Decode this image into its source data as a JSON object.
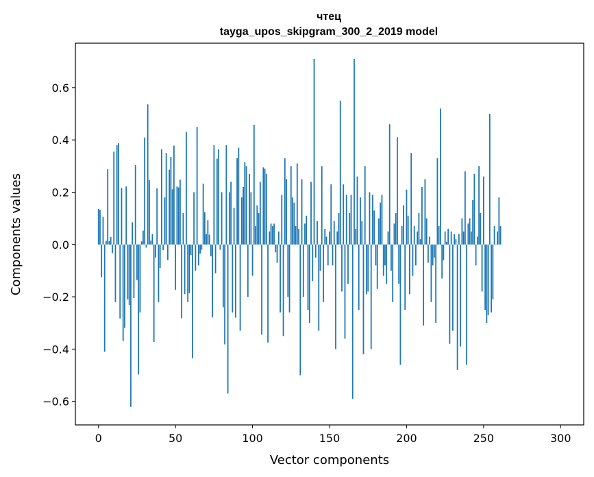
{
  "chart_data": {
    "type": "bar",
    "title": "чтец",
    "subtitle": "tayga_upos_skipgram_300_2_2019 model",
    "xlabel": "Vector components",
    "ylabel": "Components values",
    "xlim": [
      -15,
      315
    ],
    "ylim": [
      -0.69,
      0.77
    ],
    "x_ticks": [
      0,
      50,
      100,
      150,
      200,
      250,
      300
    ],
    "x_tick_labels": [
      "0",
      "50",
      "100",
      "150",
      "200",
      "250",
      "300"
    ],
    "y_ticks": [
      -0.6,
      -0.4,
      -0.2,
      0.0,
      0.2,
      0.4,
      0.6
    ],
    "y_tick_labels": [
      "−0.6",
      "−0.4",
      "−0.2",
      "0.0",
      "0.2",
      "0.4",
      "0.6"
    ],
    "bar_color": "#1f77b4",
    "series": [
      {
        "name": "components",
        "values": [
          0.136,
          0.133,
          -0.125,
          0.106,
          -0.41,
          0.014,
          0.288,
          0.013,
          0.029,
          -0.033,
          0.355,
          -0.22,
          0.38,
          0.388,
          -0.283,
          0.216,
          -0.369,
          -0.319,
          0.222,
          -0.21,
          -0.232,
          -0.621,
          0.085,
          -0.205,
          0.304,
          -0.136,
          -0.497,
          -0.26,
          0.012,
          0.053,
          0.409,
          -0.012,
          0.536,
          0.246,
          0.015,
          0.04,
          -0.373,
          -0.05,
          0.215,
          -0.22,
          -0.09,
          0.364,
          -0.022,
          0.18,
          0.35,
          -0.059,
          0.286,
          0.335,
          0.211,
          0.378,
          -0.173,
          0.222,
          0.218,
          0.248,
          -0.282,
          0.12,
          -0.19,
          0.431,
          -0.22,
          -0.186,
          -0.04,
          -0.435,
          0.2,
          -0.1,
          0.45,
          -0.08,
          -0.035,
          -0.02,
          0.233,
          0.124,
          0.04,
          0.093,
          0.038,
          -0.045,
          -0.279,
          0.38,
          -0.11,
          0.328,
          0.364,
          -0.02,
          0.2,
          -0.24,
          -0.382,
          0.38,
          -0.57,
          0.2,
          0.24,
          -0.26,
          0.14,
          -0.28,
          0.33,
          0.37,
          -0.33,
          0.18,
          0.22,
          0.315,
          0.3,
          -0.2,
          0.27,
          0.2,
          -0.12,
          0.458,
          0.07,
          0.15,
          0.12,
          0.24,
          -0.345,
          0.295,
          0.29,
          0.27,
          -0.375,
          0.05,
          0.08,
          0.07,
          0.08,
          -0.03,
          -0.07,
          0.05,
          -0.26,
          0.19,
          -0.35,
          0.33,
          0.25,
          -0.2,
          -0.26,
          0.3,
          0.18,
          0.16,
          0.07,
          0.31,
          0.06,
          -0.5,
          0.25,
          -0.2,
          0.08,
          0.11,
          -0.25,
          -0.3,
          0.24,
          -0.14,
          0.71,
          -0.05,
          0.09,
          -0.33,
          -0.1,
          0.3,
          -0.22,
          0.06,
          0.03,
          -0.08,
          0.05,
          0.23,
          -0.08,
          0.09,
          -0.4,
          0.05,
          0.12,
          0.55,
          -0.18,
          0.23,
          -0.36,
          0.19,
          -0.15,
          0.12,
          0.19,
          -0.59,
          0.71,
          0.06,
          0.26,
          -0.25,
          0.18,
          0.09,
          -0.42,
          0.3,
          -0.19,
          -0.18,
          0.2,
          -0.4,
          0.19,
          0.13,
          -0.08,
          -0.17,
          0.1,
          0.16,
          0.19,
          -0.12,
          -0.08,
          -0.15,
          0.05,
          0.46,
          -0.1,
          -0.22,
          0.08,
          0.12,
          0.41,
          -0.15,
          -0.46,
          0.07,
          0.15,
          -0.25,
          0.21,
          0.11,
          -0.19,
          0.35,
          -0.12,
          0.07,
          -0.08,
          0.05,
          0.12,
          0.02,
          0.22,
          -0.31,
          0.25,
          0.1,
          -0.07,
          0.03,
          -0.22,
          -0.08,
          -0.05,
          -0.3,
          0.33,
          0.07,
          0.52,
          -0.13,
          -0.06,
          0.05,
          0.01,
          0.06,
          -0.38,
          0.05,
          -0.33,
          0.04,
          0.02,
          -0.48,
          0.04,
          -0.39,
          0.1,
          0.05,
          0.28,
          -0.46,
          0.08,
          0.1,
          0.05,
          0.17,
          0.27,
          -0.08,
          0.03,
          0.3,
          0.12,
          -0.18,
          0.26,
          -0.25,
          -0.3,
          -0.27,
          0.5,
          -0.26,
          -0.21,
          0.07,
          0.0,
          0.05,
          0.18,
          0.07
        ]
      }
    ]
  }
}
